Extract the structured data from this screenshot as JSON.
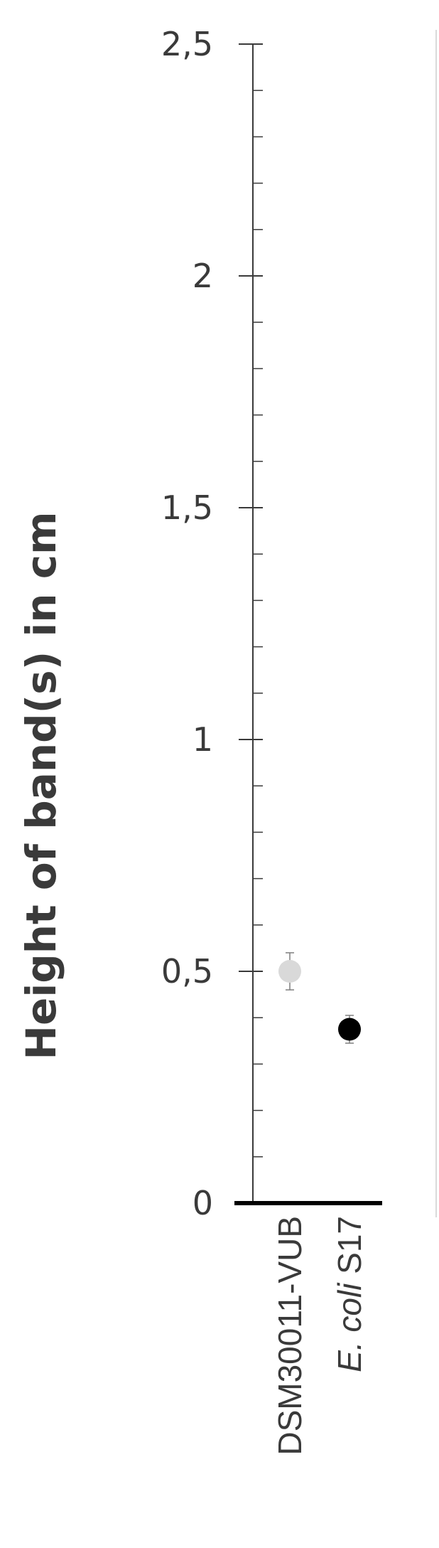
{
  "chart_data": {
    "type": "scatter",
    "ylabel": "Height of band(s) in cm",
    "xlabel": "",
    "ylim": [
      0,
      2.5
    ],
    "y_ticks": [
      {
        "value": 0,
        "label": "0"
      },
      {
        "value": 0.5,
        "label": "0,5"
      },
      {
        "value": 1,
        "label": "1"
      },
      {
        "value": 1.5,
        "label": "1,5"
      },
      {
        "value": 2,
        "label": "2"
      },
      {
        "value": 2.5,
        "label": "2,5"
      }
    ],
    "minor_tick_step": 0.1,
    "grid": false,
    "categories": [
      "DSM30011-VUB",
      "E. coli S17"
    ],
    "category_parts": [
      {
        "italic": "",
        "normal": "DSM30011-VUB"
      },
      {
        "italic": "E. coli",
        "normal": " S17"
      }
    ],
    "points": [
      {
        "category": "DSM30011-VUB",
        "value": 0.5,
        "error": 0.04,
        "color": "#d9d9d9"
      },
      {
        "category": "E. coli S17",
        "value": 0.375,
        "error": 0.03,
        "color": "#000000"
      }
    ],
    "colors": {
      "axis": "#3a3a3a",
      "baseline": "#000000",
      "frame": "#d9d9d9"
    }
  }
}
